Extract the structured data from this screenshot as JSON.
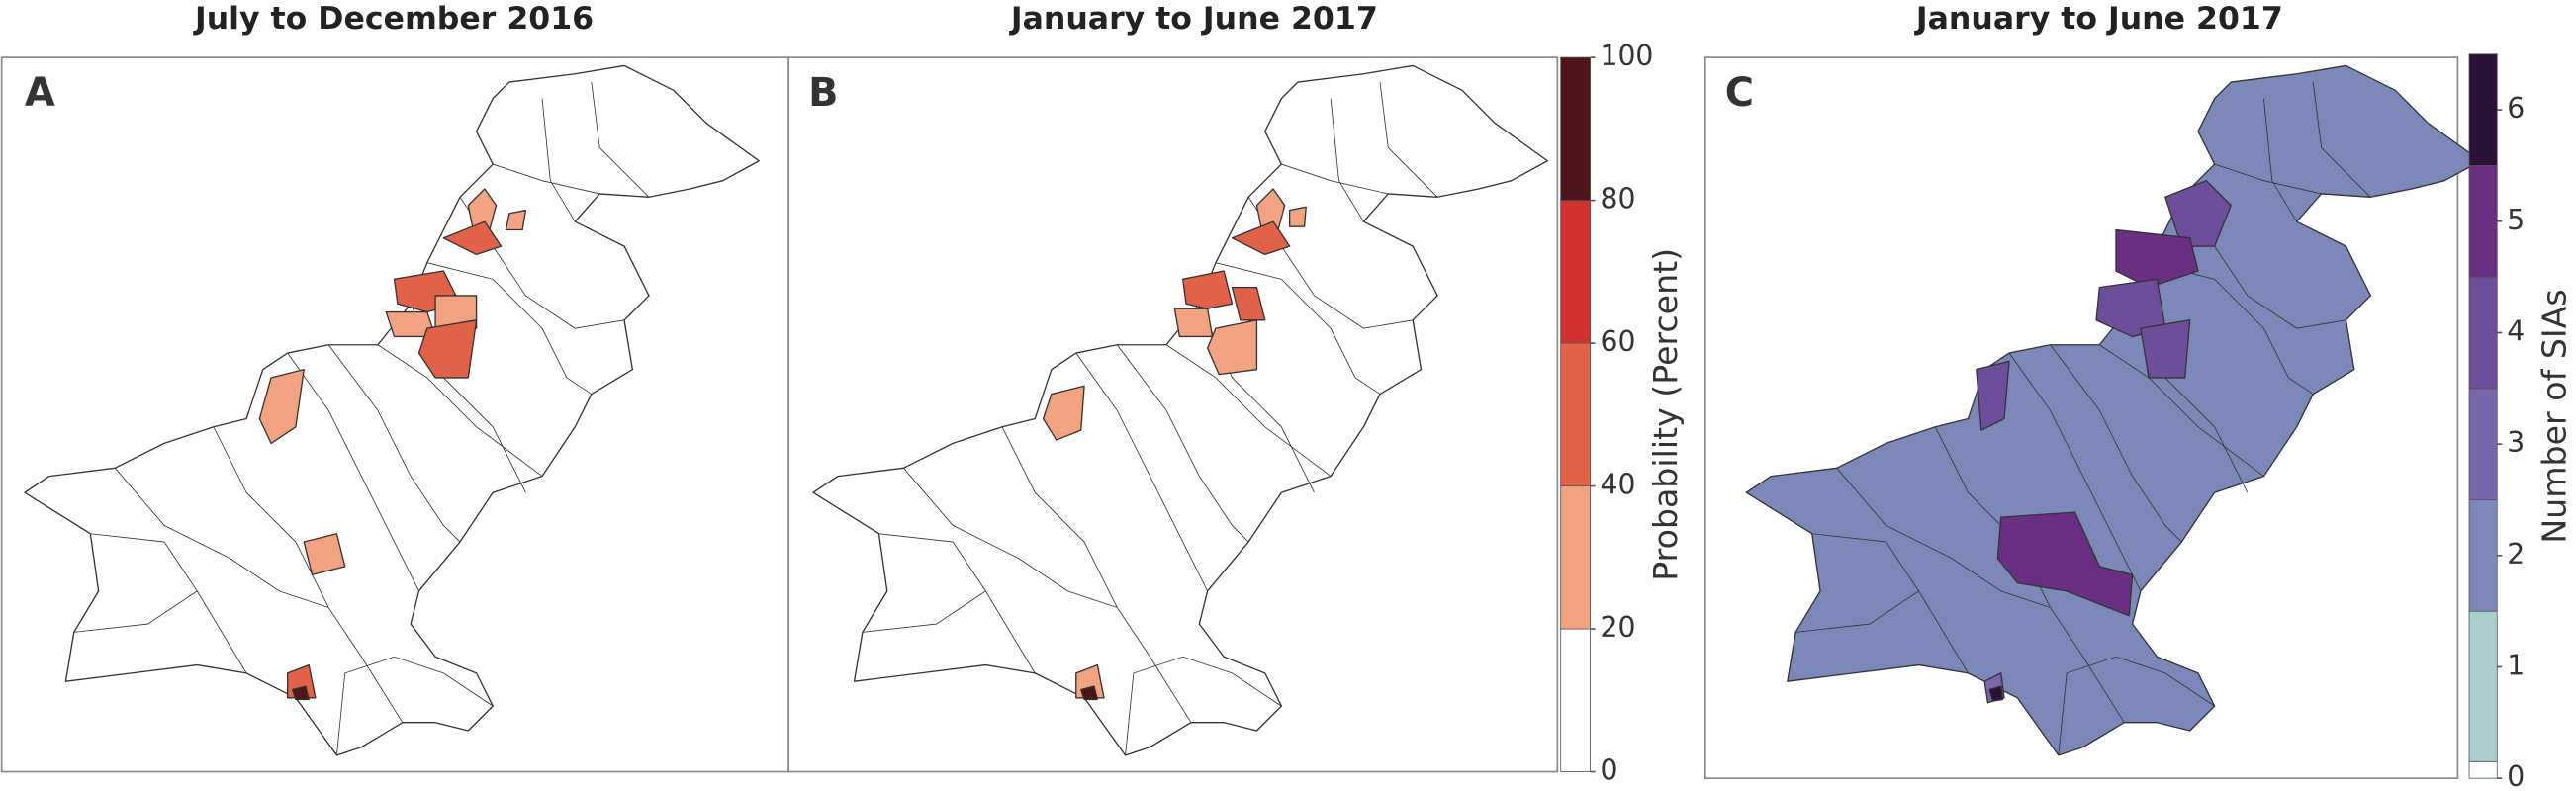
{
  "panels": [
    {
      "letter": "A",
      "title": "July to December 2016"
    },
    {
      "letter": "B",
      "title": "January to June 2017"
    },
    {
      "letter": "C",
      "title": "January to June 2017"
    }
  ],
  "colorbars": [
    {
      "label": "Probability (Percent)",
      "lim": [
        0,
        100
      ],
      "ticks": [
        0,
        20,
        40,
        60,
        80,
        100
      ],
      "bins": [
        0,
        20,
        40,
        60,
        80,
        100
      ],
      "colors": [
        "#ffffff",
        "#f2a382",
        "#e26249",
        "#d0312f",
        "#4b1519"
      ]
    },
    {
      "label": "Number of SIAs",
      "lim": [
        0,
        6.5
      ],
      "ticks": [
        0,
        1,
        2,
        3,
        4,
        5,
        6
      ],
      "bins": [
        0,
        0.15,
        1.5,
        2.5,
        3.5,
        4.5,
        5.5,
        6.5
      ],
      "colors": [
        "#ffffff",
        "#a9cfd1",
        "#7b88b8",
        "#7868ab",
        "#6e4d9b",
        "#692f82",
        "#2b1136"
      ]
    }
  ]
}
